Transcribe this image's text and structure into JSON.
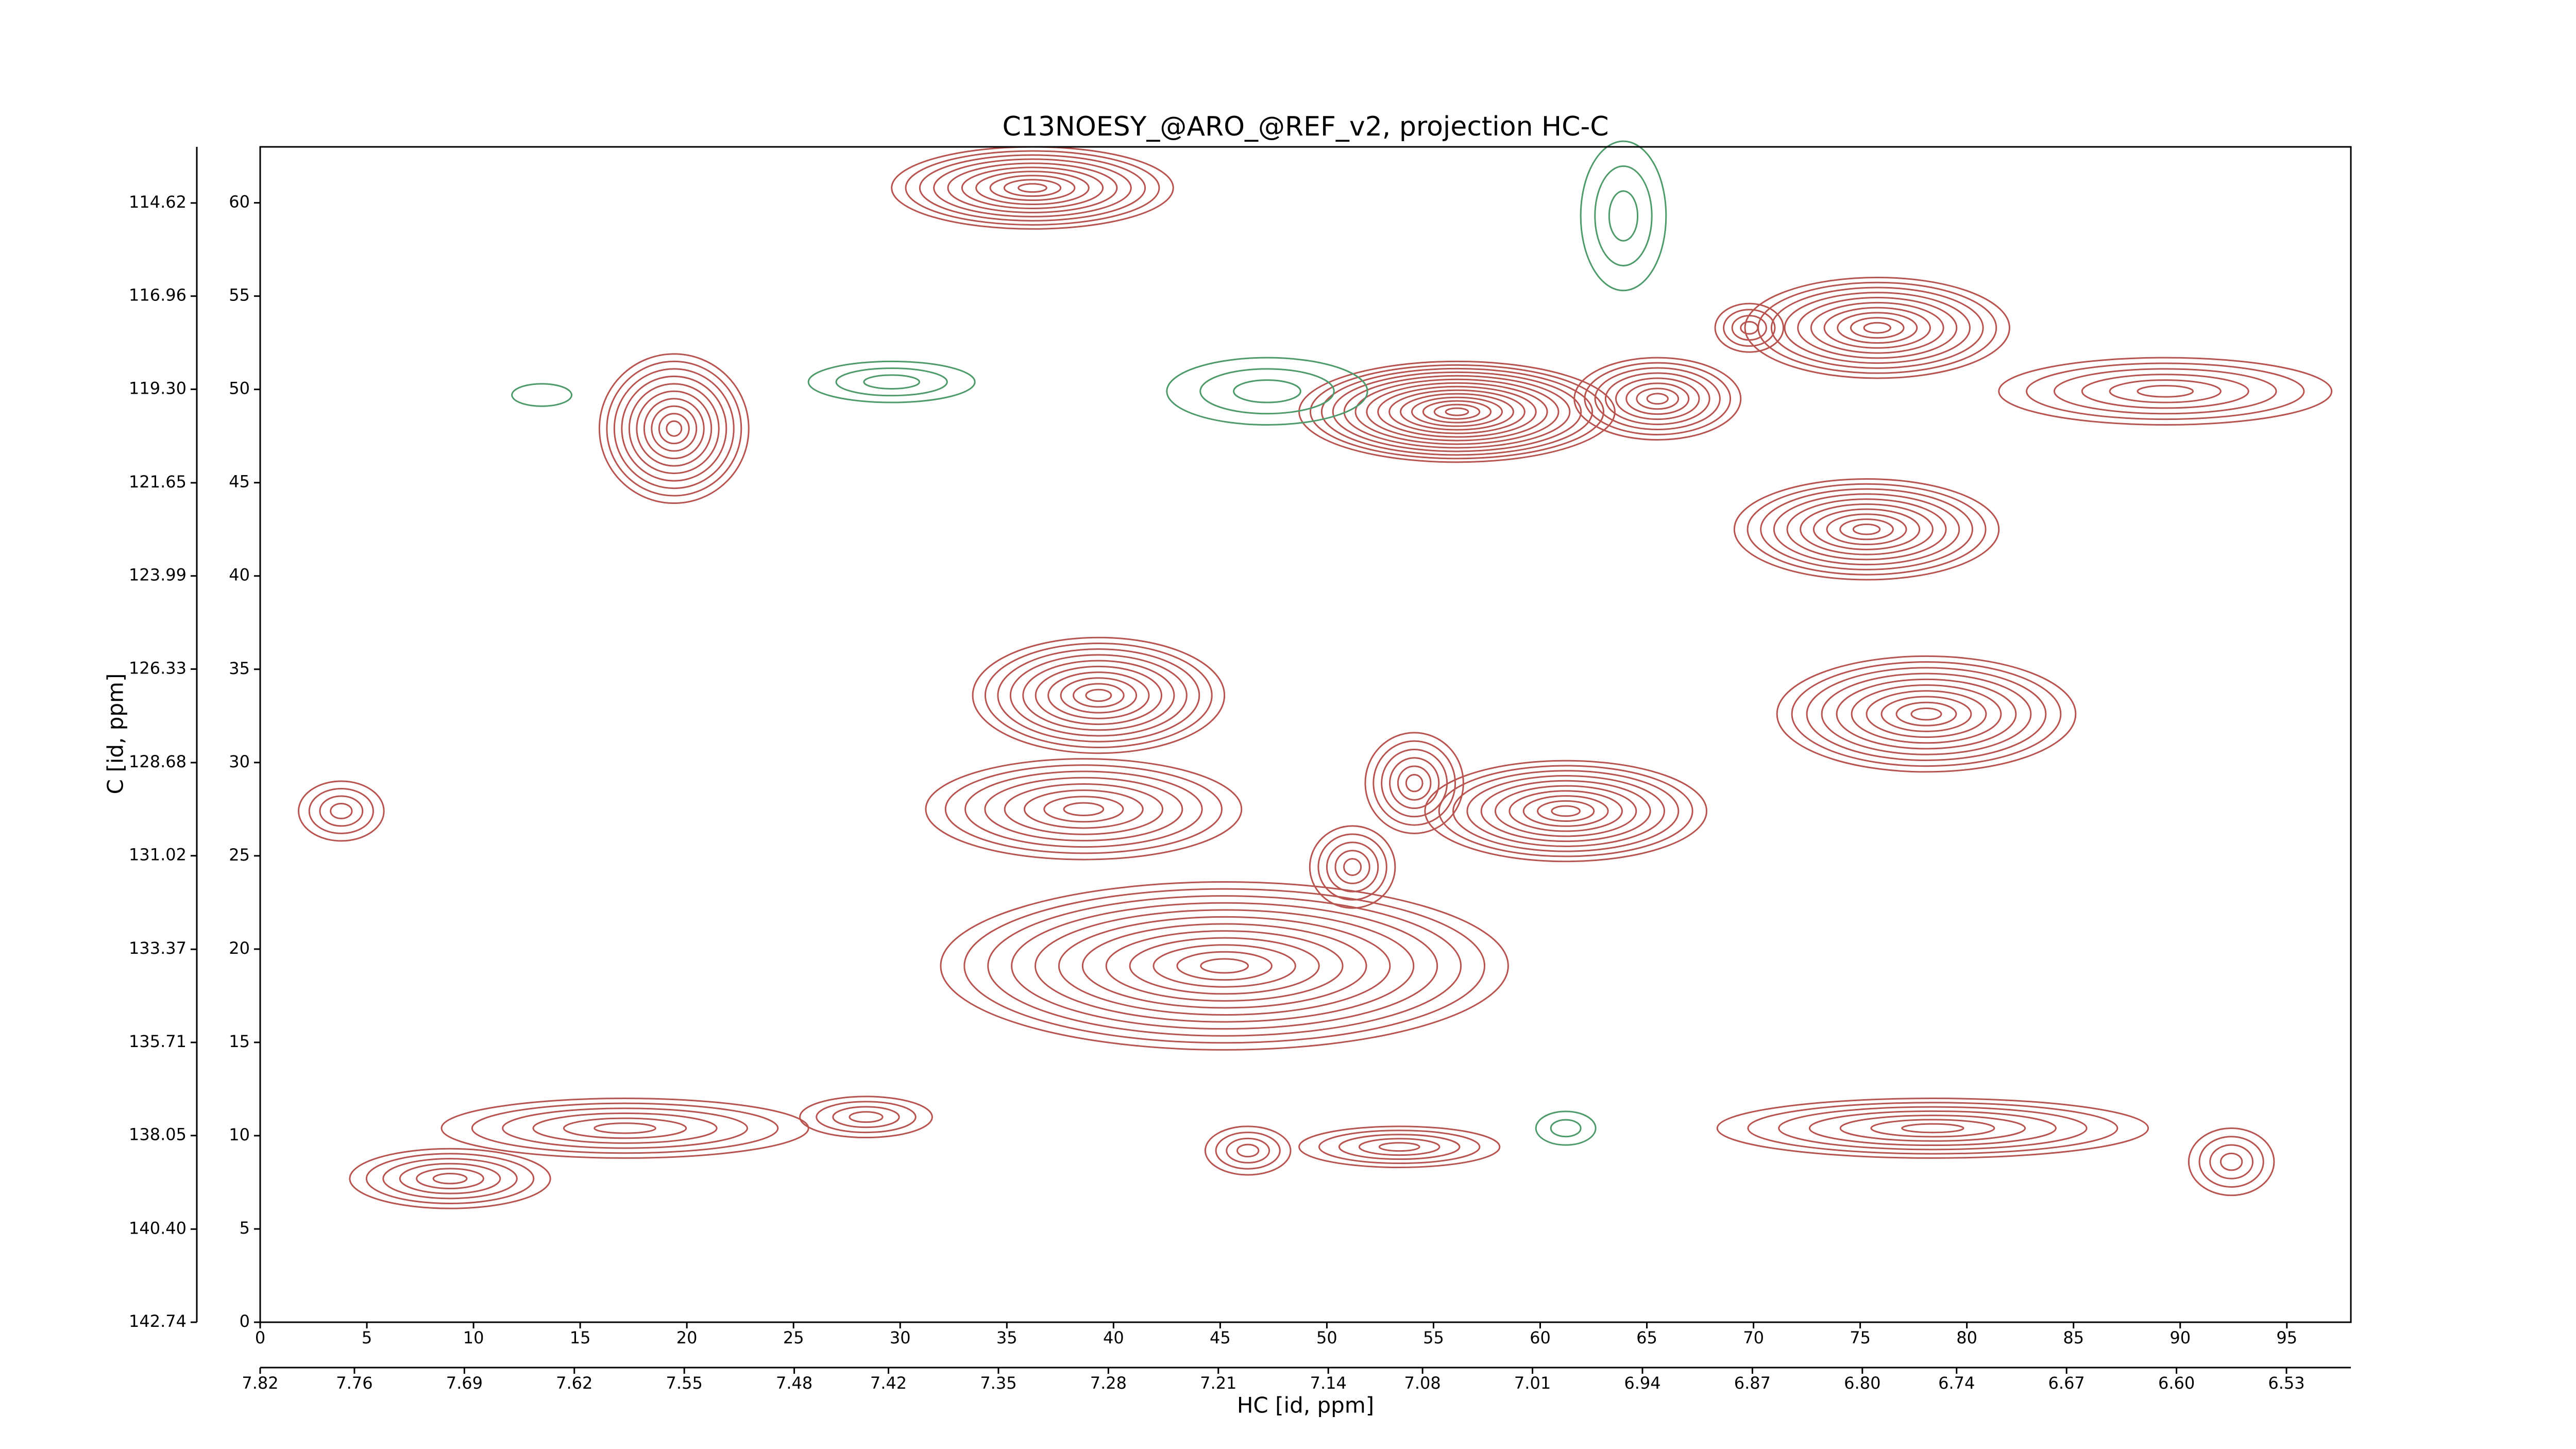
{
  "chart_data": {
    "type": "contour",
    "title": "C13NOESY_@ARO_@REF_v2, projection HC-C",
    "xlabel": "HC [id, ppm]",
    "ylabel": "C [id, ppm]",
    "xlim": [
      0,
      98
    ],
    "ylim": [
      0,
      63
    ],
    "xticks": [
      0,
      5,
      10,
      15,
      20,
      25,
      30,
      35,
      40,
      45,
      50,
      55,
      60,
      65,
      70,
      75,
      80,
      85,
      90,
      95
    ],
    "yticks": [
      0,
      5,
      10,
      15,
      20,
      25,
      30,
      35,
      40,
      45,
      50,
      55,
      60
    ],
    "x2lim": [
      7.82,
      6.489
    ],
    "x2ticks": [
      7.82,
      7.76,
      7.69,
      7.62,
      7.55,
      7.48,
      7.42,
      7.35,
      7.28,
      7.21,
      7.14,
      7.08,
      7.01,
      6.94,
      6.87,
      {
        "value": 6.8,
        "label": "6.80"
      },
      6.74,
      6.67,
      {
        "value": 6.6,
        "label": "6.60"
      },
      6.53
    ],
    "y2lim": [
      142.74,
      113.21
    ],
    "y2ticks": [
      142.74,
      {
        "value": 140.4,
        "label": "140.40"
      },
      138.05,
      135.71,
      133.37,
      131.02,
      128.68,
      126.33,
      123.99,
      121.65,
      {
        "value": 119.3,
        "label": "119.30"
      },
      116.96,
      114.62
    ],
    "contours": [
      {
        "color": "#b85450",
        "x": [
          36.2,
          19.4,
          56.1,
          65.5,
          75.8,
          69.8,
          75.3,
          78.1,
          39.3,
          61.2,
          38.6,
          45.2,
          54.1,
          51.2,
          17.1,
          28.4,
          8.9,
          53.4,
          78.4,
          92.4,
          3.8,
          89.3,
          46.3
        ],
        "y": [
          60.8,
          47.9,
          48.8,
          49.5,
          53.3,
          53.3,
          42.5,
          32.6,
          33.6,
          27.4,
          27.5,
          19.1,
          28.9,
          24.4,
          10.4,
          11.0,
          7.7,
          9.4,
          10.4,
          8.6,
          27.4,
          49.9,
          9.2
        ],
        "x_width": [
          6.6,
          3.5,
          7.4,
          3.9,
          6.2,
          1.6,
          6.2,
          7.0,
          5.9,
          6.6,
          7.4,
          13.3,
          2.3,
          2.0,
          8.6,
          3.1,
          4.7,
          4.7,
          10.1,
          2.0,
          2.0,
          7.8,
          2.0
        ],
        "y_width": [
          2.2,
          4.0,
          2.7,
          2.2,
          2.7,
          1.3,
          2.7,
          3.1,
          3.1,
          2.7,
          2.7,
          4.5,
          2.7,
          2.2,
          1.6,
          1.1,
          1.6,
          1.1,
          1.6,
          1.8,
          1.6,
          1.8,
          1.3
        ],
        "levels": [
          10,
          10,
          14,
          8,
          10,
          4,
          10,
          10,
          10,
          10,
          8,
          12,
          6,
          5,
          6,
          4,
          6,
          5,
          7,
          4,
          4,
          6,
          4
        ]
      },
      {
        "color": "#4e9a6b",
        "x": [
          47.2,
          29.6,
          63.9,
          61.2,
          13.2
        ],
        "y": [
          49.9,
          50.4,
          59.3,
          10.4,
          49.7
        ],
        "x_width": [
          4.7,
          3.9,
          2.0,
          1.4,
          1.4
        ],
        "y_width": [
          1.8,
          1.1,
          4.0,
          0.9,
          0.6
        ],
        "levels": [
          3,
          3,
          3,
          2,
          1
        ]
      }
    ]
  }
}
